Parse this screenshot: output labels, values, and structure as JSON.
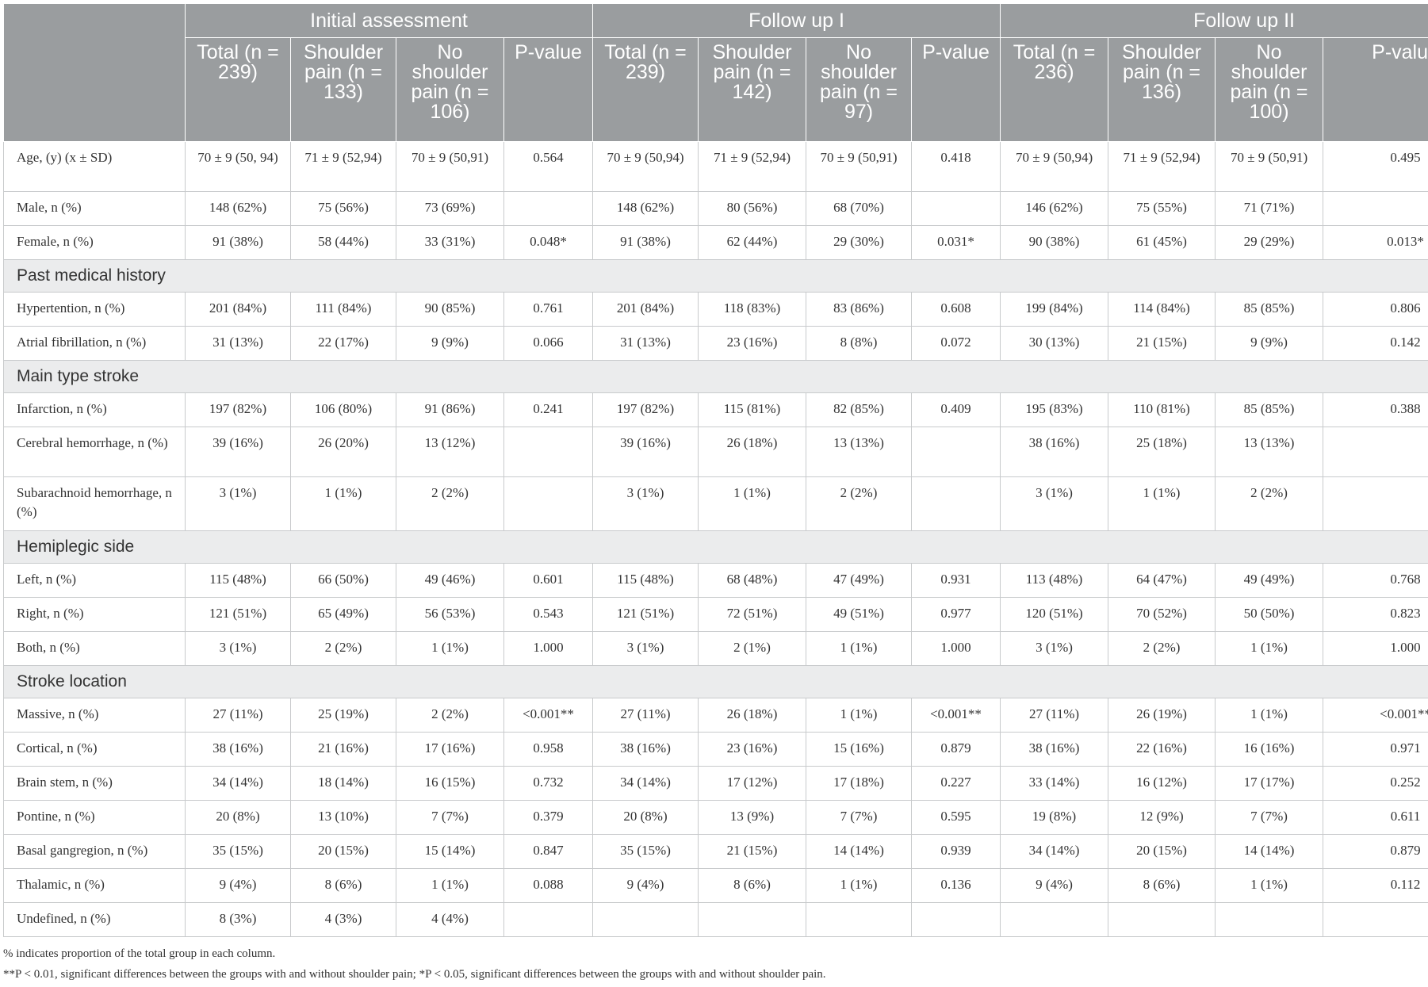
{
  "header": {
    "groups": [
      "Initial assessment",
      "Follow up I",
      "Follow up II"
    ],
    "subheaders": [
      "Total (n = 239)",
      "Shoulder pain (n = 133)",
      "No shoulder pain (n = 106)",
      "P-value",
      "Total (n = 239)",
      "Shoulder pain (n = 142)",
      "No shoulder pain (n = 97)",
      "P-value",
      "Total (n = 236)",
      "Shoulder pain (n = 136)",
      "No shoulder pain (n = 100)",
      "P-value"
    ]
  },
  "rows": [
    {
      "type": "data",
      "h": "r1",
      "label": "Age, (y) (x ± SD)",
      "cells": [
        "70 ± 9 (50, 94)",
        "71 ± 9 (52,94)",
        "70 ± 9 (50,91)",
        "0.564",
        "70 ± 9 (50,94)",
        "71 ± 9 (52,94)",
        "70 ± 9 (50,91)",
        "0.418",
        "70 ± 9 (50,94)",
        "71 ± 9 (52,94)",
        "70 ± 9 (50,91)",
        "0.495"
      ]
    },
    {
      "type": "data",
      "h": "r3",
      "label": "Male, n (%)",
      "cells": [
        "148 (62%)",
        "75 (56%)",
        "73 (69%)",
        "",
        "148 (62%)",
        "80 (56%)",
        "68 (70%)",
        "",
        "146 (62%)",
        "75 (55%)",
        "71 (71%)",
        ""
      ]
    },
    {
      "type": "data",
      "h": "r3",
      "label": "Female, n (%)",
      "cells": [
        "91 (38%)",
        "58 (44%)",
        "33 (31%)",
        "0.048*",
        "91 (38%)",
        "62 (44%)",
        "29 (30%)",
        "0.031*",
        "90 (38%)",
        "61 (45%)",
        "29 (29%)",
        "0.013*"
      ]
    },
    {
      "type": "section",
      "label": "Past medical history"
    },
    {
      "type": "data",
      "h": "r3",
      "label": "Hypertention, n (%)",
      "cells": [
        "201 (84%)",
        "111 (84%)",
        "90 (85%)",
        "0.761",
        "201 (84%)",
        "118 (83%)",
        "83 (86%)",
        "0.608",
        "199 (84%)",
        "114 (84%)",
        "85 (85%)",
        "0.806"
      ]
    },
    {
      "type": "data",
      "h": "r3",
      "label": "Atrial fibrillation, n (%)",
      "cells": [
        "31 (13%)",
        "22 (17%)",
        "9 (9%)",
        "0.066",
        "31 (13%)",
        "23 (16%)",
        "8 (8%)",
        "0.072",
        "30 (13%)",
        "21 (15%)",
        "9 (9%)",
        "0.142"
      ]
    },
    {
      "type": "section",
      "label": "Main type stroke"
    },
    {
      "type": "data",
      "h": "r3",
      "label": "Infarction, n (%)",
      "cells": [
        "197 (82%)",
        "106 (80%)",
        "91 (86%)",
        "0.241",
        "197 (82%)",
        "115 (81%)",
        "82 (85%)",
        "0.409",
        "195 (83%)",
        "110 (81%)",
        "85 (85%)",
        "0.388"
      ]
    },
    {
      "type": "data",
      "h": "r1",
      "label": "Cerebral hemorrhage, n (%)",
      "cells": [
        "39 (16%)",
        "26 (20%)",
        "13 (12%)",
        "",
        "39 (16%)",
        "26 (18%)",
        "13 (13%)",
        "",
        "38 (16%)",
        "25 (18%)",
        "13 (13%)",
        ""
      ]
    },
    {
      "type": "data",
      "h": "r2",
      "label": "Subarachnoid hemorrhage, n (%)",
      "cells": [
        "3 (1%)",
        "1 (1%)",
        "2 (2%)",
        "",
        "3 (1%)",
        "1 (1%)",
        "2 (2%)",
        "",
        "3 (1%)",
        "1 (1%)",
        "2 (2%)",
        ""
      ]
    },
    {
      "type": "section",
      "label": "Hemiplegic side"
    },
    {
      "type": "data",
      "h": "r3",
      "label": "Left, n (%)",
      "cells": [
        "115 (48%)",
        "66 (50%)",
        "49 (46%)",
        "0.601",
        "115 (48%)",
        "68 (48%)",
        "47 (49%)",
        "0.931",
        "113 (48%)",
        "64 (47%)",
        "49 (49%)",
        "0.768"
      ]
    },
    {
      "type": "data",
      "h": "r3",
      "label": "Right, n (%)",
      "cells": [
        "121 (51%)",
        "65 (49%)",
        "56 (53%)",
        "0.543",
        "121 (51%)",
        "72 (51%)",
        "49 (51%)",
        "0.977",
        "120 (51%)",
        "70 (52%)",
        "50 (50%)",
        "0.823"
      ]
    },
    {
      "type": "data",
      "h": "r3",
      "label": "Both, n (%)",
      "cells": [
        "3 (1%)",
        "2 (2%)",
        "1 (1%)",
        "1.000",
        "3 (1%)",
        "2 (1%)",
        "1 (1%)",
        "1.000",
        "3 (1%)",
        "2 (2%)",
        "1 (1%)",
        "1.000"
      ]
    },
    {
      "type": "section",
      "label": "Stroke location"
    },
    {
      "type": "data",
      "h": "r3",
      "label": "Massive, n (%)",
      "cells": [
        "27 (11%)",
        "25 (19%)",
        "2 (2%)",
        "<0.001**",
        "27 (11%)",
        "26 (18%)",
        "1 (1%)",
        "<0.001**",
        "27 (11%)",
        "26 (19%)",
        "1 (1%)",
        "<0.001**"
      ]
    },
    {
      "type": "data",
      "h": "r3",
      "label": "Cortical, n (%)",
      "cells": [
        "38 (16%)",
        "21 (16%)",
        "17 (16%)",
        "0.958",
        "38 (16%)",
        "23 (16%)",
        "15 (16%)",
        "0.879",
        "38 (16%)",
        "22 (16%)",
        "16 (16%)",
        "0.971"
      ]
    },
    {
      "type": "data",
      "h": "r3",
      "label": "Brain stem, n (%)",
      "cells": [
        "34 (14%)",
        "18 (14%)",
        "16 (15%)",
        "0.732",
        "34 (14%)",
        "17 (12%)",
        "17 (18%)",
        "0.227",
        "33 (14%)",
        "16 (12%)",
        "17 (17%)",
        "0.252"
      ]
    },
    {
      "type": "data",
      "h": "r3",
      "label": "Pontine, n (%)",
      "cells": [
        "20 (8%)",
        "13 (10%)",
        "7 (7%)",
        "0.379",
        "20 (8%)",
        "13 (9%)",
        "7 (7%)",
        "0.595",
        "19 (8%)",
        "12 (9%)",
        "7 (7%)",
        "0.611"
      ]
    },
    {
      "type": "data",
      "h": "r3",
      "label": "Basal gangregion, n (%)",
      "cells": [
        "35 (15%)",
        "20 (15%)",
        "15 (14%)",
        "0.847",
        "35 (15%)",
        "21 (15%)",
        "14 (14%)",
        "0.939",
        "34 (14%)",
        "20 (15%)",
        "14 (14%)",
        "0.879"
      ]
    },
    {
      "type": "data",
      "h": "r3",
      "label": "Thalamic, n (%)",
      "cells": [
        "9 (4%)",
        "8 (6%)",
        "1 (1%)",
        "0.088",
        "9 (4%)",
        "8 (6%)",
        "1 (1%)",
        "0.136",
        "9 (4%)",
        "8 (6%)",
        "1 (1%)",
        "0.112"
      ]
    },
    {
      "type": "data",
      "h": "r3",
      "label": "Undefined, n (%)",
      "cells": [
        "8 (3%)",
        "4 (3%)",
        "4 (4%)",
        "",
        "",
        "",
        "",
        "",
        "",
        "",
        "",
        ""
      ]
    }
  ],
  "footnotes": [
    "% indicates proportion of the total group in each column.",
    "**P < 0.01, significant differences between the groups with and without shoulder pain; *P < 0.05, significant differences between the groups with and without shoulder pain."
  ]
}
